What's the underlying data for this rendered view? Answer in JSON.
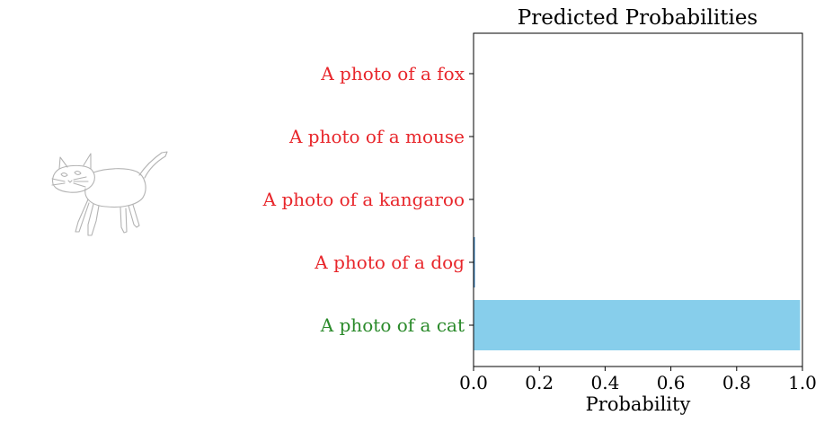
{
  "sketch": {
    "subject": "cat",
    "style": "line-drawing",
    "stroke_color": "#b3b3b3"
  },
  "chart_data": {
    "type": "bar",
    "orientation": "horizontal",
    "title": "Predicted Probabilities",
    "xlabel": "Probability",
    "ylabel": "",
    "xlim": [
      0,
      1
    ],
    "xticks": [
      0.0,
      0.2,
      0.4,
      0.6,
      0.8,
      1.0
    ],
    "xtick_labels": [
      "0.0",
      "0.2",
      "0.4",
      "0.6",
      "0.8",
      "1.0"
    ],
    "categories": [
      "A photo of a fox",
      "A photo of a mouse",
      "A photo of a kangaroo",
      "A photo of a dog",
      "A photo of a cat"
    ],
    "values": [
      0.0,
      0.0,
      0.0,
      0.004,
      0.993
    ],
    "label_colors": [
      "#e8262b",
      "#e8262b",
      "#e8262b",
      "#e8262b",
      "#2a8a2a"
    ],
    "bar_color": "#87ceeb",
    "bar_edge_color": "#2f7fc1",
    "grid": false,
    "legend": "none"
  }
}
